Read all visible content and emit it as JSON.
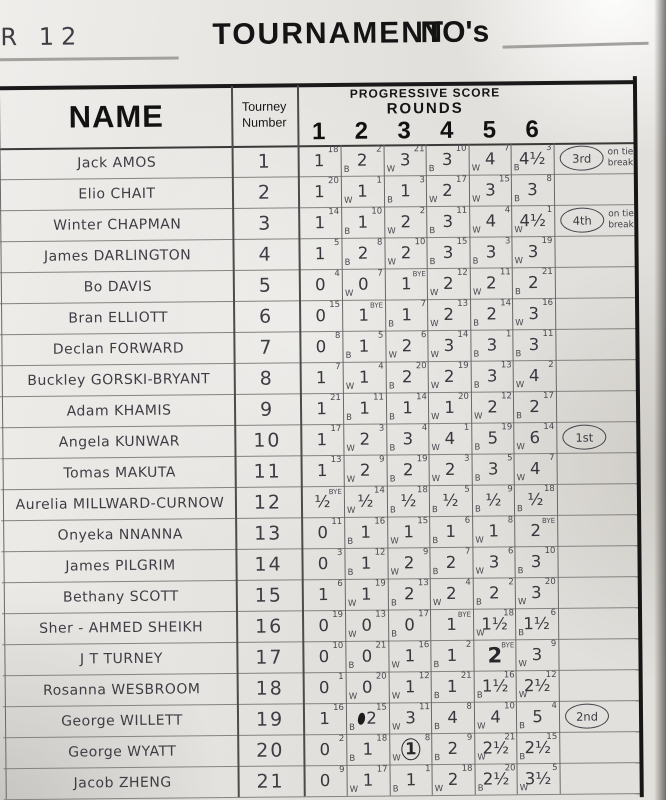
{
  "page": {
    "corner": "R 12",
    "title": "TOURNAMENT",
    "numbers_label": "NO's"
  },
  "table": {
    "name_header": "NAME",
    "tourney_header_line1": "Tourney",
    "tourney_header_line2": "Number",
    "progressive_label": "PROGRESSIVE SCORE",
    "rounds_label": "ROUNDS",
    "round_numbers": [
      "1",
      "2",
      "3",
      "4",
      "5",
      "6"
    ],
    "players": [
      {
        "name": "Jack AMOS",
        "number": "1",
        "award": "3rd",
        "award_note": "on tie break",
        "rounds": [
          {
            "score": "1",
            "opp": "18",
            "color": ""
          },
          {
            "score": "2",
            "opp": "2",
            "color": "B"
          },
          {
            "score": "3",
            "opp": "21",
            "color": "W"
          },
          {
            "score": "3",
            "opp": "10",
            "color": "B"
          },
          {
            "score": "4",
            "opp": "7",
            "color": "W"
          },
          {
            "score": "4½",
            "opp": "3",
            "color": "B"
          }
        ]
      },
      {
        "name": "Elio CHAIT",
        "number": "2",
        "award": "",
        "award_note": "",
        "rounds": [
          {
            "score": "1",
            "opp": "20",
            "color": ""
          },
          {
            "score": "1",
            "opp": "1",
            "color": "W"
          },
          {
            "score": "1",
            "opp": "3",
            "color": "B"
          },
          {
            "score": "2",
            "opp": "17",
            "color": "W"
          },
          {
            "score": "3",
            "opp": "15",
            "color": "W"
          },
          {
            "score": "3",
            "opp": "8",
            "color": "B"
          }
        ]
      },
      {
        "name": "Winter CHAPMAN",
        "number": "3",
        "award": "4th",
        "award_note": "on tie break",
        "rounds": [
          {
            "score": "1",
            "opp": "14",
            "color": ""
          },
          {
            "score": "1",
            "opp": "10",
            "color": "B"
          },
          {
            "score": "2",
            "opp": "2",
            "color": "W"
          },
          {
            "score": "3",
            "opp": "11",
            "color": "B"
          },
          {
            "score": "4",
            "opp": "4",
            "color": "W"
          },
          {
            "score": "4½",
            "opp": "1",
            "color": "W"
          }
        ]
      },
      {
        "name": "James DARLINGTON",
        "number": "4",
        "award": "",
        "award_note": "",
        "rounds": [
          {
            "score": "1",
            "opp": "5",
            "color": ""
          },
          {
            "score": "2",
            "opp": "8",
            "color": "B"
          },
          {
            "score": "2",
            "opp": "10",
            "color": "W"
          },
          {
            "score": "3",
            "opp": "15",
            "color": "B"
          },
          {
            "score": "3",
            "opp": "3",
            "color": "B"
          },
          {
            "score": "3",
            "opp": "19",
            "color": "W"
          }
        ]
      },
      {
        "name": "Bo DAVIS",
        "number": "5",
        "award": "",
        "award_note": "",
        "rounds": [
          {
            "score": "0",
            "opp": "4",
            "color": ""
          },
          {
            "score": "0",
            "opp": "7",
            "color": "W"
          },
          {
            "score": "1",
            "opp": "BYE",
            "color": ""
          },
          {
            "score": "2",
            "opp": "12",
            "color": "W"
          },
          {
            "score": "2",
            "opp": "11",
            "color": "W"
          },
          {
            "score": "2",
            "opp": "21",
            "color": "B"
          }
        ]
      },
      {
        "name": "Bran ELLIOTT",
        "number": "6",
        "award": "",
        "award_note": "",
        "rounds": [
          {
            "score": "0",
            "opp": "15",
            "color": ""
          },
          {
            "score": "1",
            "opp": "BYE",
            "color": ""
          },
          {
            "score": "1",
            "opp": "7",
            "color": "B"
          },
          {
            "score": "2",
            "opp": "13",
            "color": "W"
          },
          {
            "score": "2",
            "opp": "14",
            "color": "B"
          },
          {
            "score": "3",
            "opp": "16",
            "color": "W"
          }
        ]
      },
      {
        "name": "Declan FORWARD",
        "number": "7",
        "award": "",
        "award_note": "",
        "rounds": [
          {
            "score": "0",
            "opp": "8",
            "color": ""
          },
          {
            "score": "1",
            "opp": "5",
            "color": "B"
          },
          {
            "score": "2",
            "opp": "6",
            "color": "W"
          },
          {
            "score": "3",
            "opp": "14",
            "color": "W"
          },
          {
            "score": "3",
            "opp": "1",
            "color": "B"
          },
          {
            "score": "3",
            "opp": "11",
            "color": "B"
          }
        ]
      },
      {
        "name": "Buckley GORSKI-BRYANT",
        "number": "8",
        "award": "",
        "award_note": "",
        "rounds": [
          {
            "score": "1",
            "opp": "7",
            "color": ""
          },
          {
            "score": "1",
            "opp": "4",
            "color": "W"
          },
          {
            "score": "2",
            "opp": "20",
            "color": "B"
          },
          {
            "score": "2",
            "opp": "19",
            "color": "W"
          },
          {
            "score": "3",
            "opp": "13",
            "color": "B"
          },
          {
            "score": "4",
            "opp": "2",
            "color": "W"
          }
        ]
      },
      {
        "name": "Adam KHAMIS",
        "number": "9",
        "award": "",
        "award_note": "",
        "rounds": [
          {
            "score": "1",
            "opp": "21",
            "color": ""
          },
          {
            "score": "1",
            "opp": "11",
            "color": "B"
          },
          {
            "score": "1",
            "opp": "14",
            "color": "B"
          },
          {
            "score": "1",
            "opp": "20",
            "color": "W"
          },
          {
            "score": "2",
            "opp": "12",
            "color": "W"
          },
          {
            "score": "2",
            "opp": "17",
            "color": "B"
          }
        ]
      },
      {
        "name": "Angela KUNWAR",
        "number": "10",
        "award": "1st",
        "award_note": "",
        "rounds": [
          {
            "score": "1",
            "opp": "17",
            "color": ""
          },
          {
            "score": "2",
            "opp": "3",
            "color": "W"
          },
          {
            "score": "3",
            "opp": "4",
            "color": "B"
          },
          {
            "score": "4",
            "opp": "1",
            "color": "W"
          },
          {
            "score": "5",
            "opp": "19",
            "color": "B"
          },
          {
            "score": "6",
            "opp": "14",
            "color": "W"
          }
        ]
      },
      {
        "name": "Tomas MAKUTA",
        "number": "11",
        "award": "",
        "award_note": "",
        "rounds": [
          {
            "score": "1",
            "opp": "13",
            "color": ""
          },
          {
            "score": "2",
            "opp": "9",
            "color": "W"
          },
          {
            "score": "2",
            "opp": "19",
            "color": "B"
          },
          {
            "score": "2",
            "opp": "3",
            "color": "W"
          },
          {
            "score": "3",
            "opp": "5",
            "color": "B"
          },
          {
            "score": "4",
            "opp": "7",
            "color": "W"
          }
        ]
      },
      {
        "name": "Aurelia MILLWARD-CURNOW",
        "number": "12",
        "award": "",
        "award_note": "",
        "rounds": [
          {
            "score": "½",
            "opp": "BYE",
            "color": ""
          },
          {
            "score": "½",
            "opp": "14",
            "color": "W"
          },
          {
            "score": "½",
            "opp": "18",
            "color": "B"
          },
          {
            "score": "½",
            "opp": "5",
            "color": "B"
          },
          {
            "score": "½",
            "opp": "9",
            "color": "B"
          },
          {
            "score": "½",
            "opp": "18",
            "color": "B"
          }
        ]
      },
      {
        "name": "Onyeka NNANNA",
        "number": "13",
        "award": "",
        "award_note": "",
        "rounds": [
          {
            "score": "0",
            "opp": "11",
            "color": ""
          },
          {
            "score": "1",
            "opp": "16",
            "color": "B"
          },
          {
            "score": "1",
            "opp": "15",
            "color": "W"
          },
          {
            "score": "1",
            "opp": "6",
            "color": "B"
          },
          {
            "score": "1",
            "opp": "8",
            "color": "W"
          },
          {
            "score": "2",
            "opp": "BYE",
            "color": ""
          }
        ]
      },
      {
        "name": "James PILGRIM",
        "number": "14",
        "award": "",
        "award_note": "",
        "rounds": [
          {
            "score": "0",
            "opp": "3",
            "color": ""
          },
          {
            "score": "1",
            "opp": "12",
            "color": "B"
          },
          {
            "score": "2",
            "opp": "9",
            "color": "W"
          },
          {
            "score": "2",
            "opp": "7",
            "color": "B"
          },
          {
            "score": "3",
            "opp": "6",
            "color": "W"
          },
          {
            "score": "3",
            "opp": "10",
            "color": "B"
          }
        ]
      },
      {
        "name": "Bethany SCOTT",
        "number": "15",
        "award": "",
        "award_note": "",
        "rounds": [
          {
            "score": "1",
            "opp": "6",
            "color": ""
          },
          {
            "score": "1",
            "opp": "19",
            "color": "W"
          },
          {
            "score": "2",
            "opp": "13",
            "color": "B"
          },
          {
            "score": "2",
            "opp": "4",
            "color": "W"
          },
          {
            "score": "2",
            "opp": "2",
            "color": "B"
          },
          {
            "score": "3",
            "opp": "20",
            "color": "W"
          }
        ]
      },
      {
        "name": "Sher - AHMED SHEIKH",
        "number": "16",
        "award": "",
        "award_note": "",
        "rounds": [
          {
            "score": "0",
            "opp": "19",
            "color": ""
          },
          {
            "score": "0",
            "opp": "13",
            "color": "W"
          },
          {
            "score": "0",
            "opp": "17",
            "color": "B"
          },
          {
            "score": "1",
            "opp": "BYE",
            "color": ""
          },
          {
            "score": "1½",
            "opp": "18",
            "color": "W"
          },
          {
            "score": "1½",
            "opp": "6",
            "color": "B"
          }
        ]
      },
      {
        "name": "J T TURNEY",
        "number": "17",
        "award": "",
        "award_note": "",
        "rounds": [
          {
            "score": "0",
            "opp": "10",
            "color": ""
          },
          {
            "score": "0",
            "opp": "21",
            "color": "B"
          },
          {
            "score": "1",
            "opp": "16",
            "color": "W"
          },
          {
            "score": "1",
            "opp": "2",
            "color": "B"
          },
          {
            "score": "2",
            "opp": "BYE",
            "color": "",
            "mark": "big"
          },
          {
            "score": "3",
            "opp": "9",
            "color": "W"
          }
        ]
      },
      {
        "name": "Rosanna WESBROOM",
        "number": "18",
        "award": "",
        "award_note": "",
        "rounds": [
          {
            "score": "0",
            "opp": "1",
            "color": ""
          },
          {
            "score": "0",
            "opp": "20",
            "color": "W"
          },
          {
            "score": "1",
            "opp": "12",
            "color": "W"
          },
          {
            "score": "1",
            "opp": "21",
            "color": "B"
          },
          {
            "score": "1½",
            "opp": "16",
            "color": "B"
          },
          {
            "score": "2½",
            "opp": "12",
            "color": "W"
          }
        ]
      },
      {
        "name": "George WILLETT",
        "number": "19",
        "award": "2nd",
        "award_note": "",
        "rounds": [
          {
            "score": "1",
            "opp": "16",
            "color": ""
          },
          {
            "score": "2",
            "opp": "15",
            "color": "B",
            "mark": "blot"
          },
          {
            "score": "3",
            "opp": "11",
            "color": "W"
          },
          {
            "score": "4",
            "opp": "8",
            "color": "B"
          },
          {
            "score": "4",
            "opp": "10",
            "color": "W"
          },
          {
            "score": "5",
            "opp": "4",
            "color": "B"
          }
        ]
      },
      {
        "name": "George WYATT",
        "number": "20",
        "award": "",
        "award_note": "",
        "rounds": [
          {
            "score": "0",
            "opp": "2",
            "color": ""
          },
          {
            "score": "1",
            "opp": "18",
            "color": "B"
          },
          {
            "score": "1",
            "opp": "8",
            "color": "W",
            "mark": "ring"
          },
          {
            "score": "2",
            "opp": "9",
            "color": "B"
          },
          {
            "score": "2½",
            "opp": "21",
            "color": "W"
          },
          {
            "score": "2½",
            "opp": "15",
            "color": "B"
          }
        ]
      },
      {
        "name": "Jacob ZHENG",
        "number": "21",
        "award": "",
        "award_note": "",
        "rounds": [
          {
            "score": "0",
            "opp": "9",
            "color": ""
          },
          {
            "score": "1",
            "opp": "17",
            "color": "W"
          },
          {
            "score": "1",
            "opp": "1",
            "color": "B"
          },
          {
            "score": "2",
            "opp": "18",
            "color": "W"
          },
          {
            "score": "2½",
            "opp": "20",
            "color": "B"
          },
          {
            "score": "3½",
            "opp": "5",
            "color": "W"
          }
        ]
      }
    ]
  }
}
